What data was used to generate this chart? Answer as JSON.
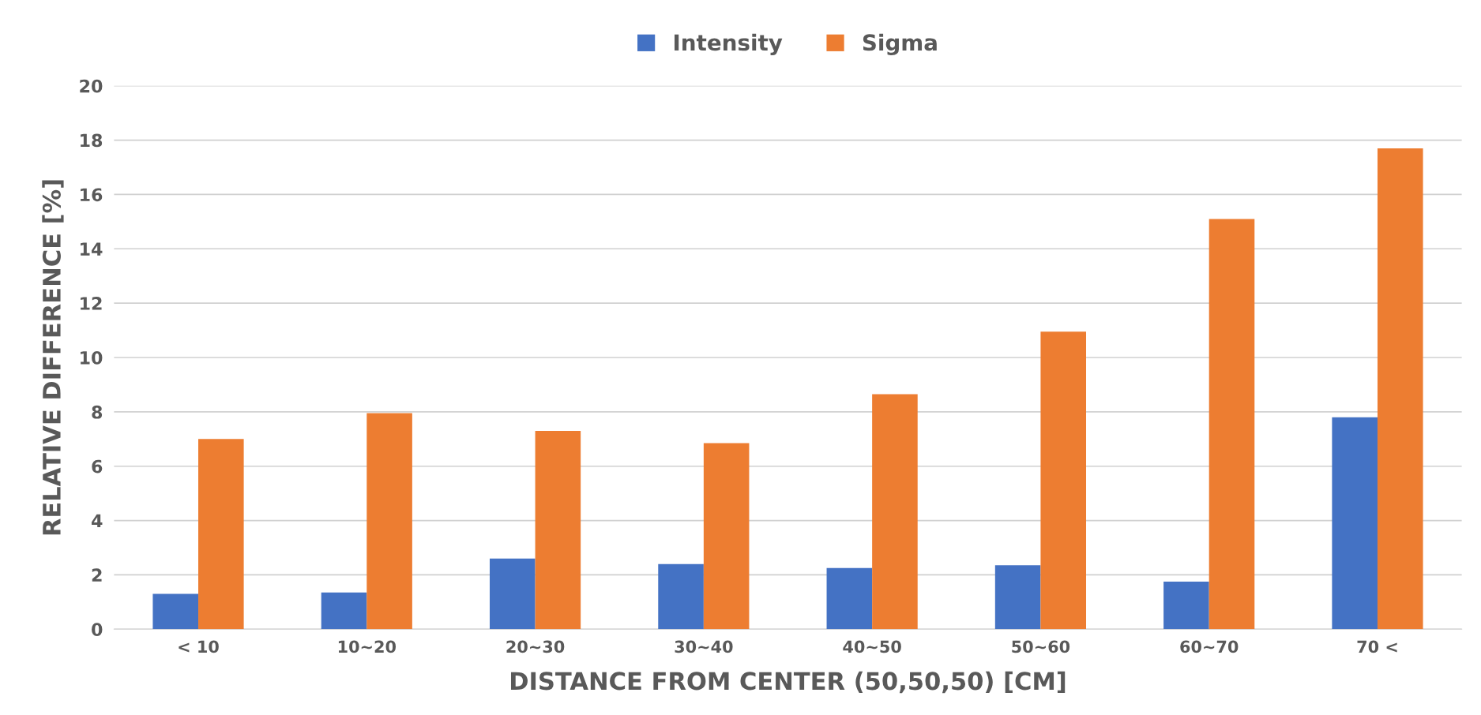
{
  "chart_data": {
    "type": "bar",
    "xlabel": "DISTANCE FROM CENTER (50,50,50) [CM]",
    "ylabel": "RELATIVE DIFFERENCE [%]",
    "categories": [
      "< 10",
      "10~20",
      "20~30",
      "30~40",
      "40~50",
      "50~60",
      "60~70",
      "70 <"
    ],
    "series": [
      {
        "name": "Intensity",
        "color": "#4472c4",
        "values": [
          1.3,
          1.35,
          2.6,
          2.4,
          2.25,
          2.35,
          1.75,
          7.8
        ]
      },
      {
        "name": "Sigma",
        "color": "#ed7d31",
        "values": [
          7.0,
          7.95,
          7.3,
          6.85,
          8.65,
          10.95,
          15.1,
          17.7
        ]
      }
    ],
    "ylim": [
      0,
      20
    ],
    "yticks": [
      0,
      2,
      4,
      6,
      8,
      10,
      12,
      14,
      16,
      18,
      20
    ],
    "grid": "y",
    "legend": "top"
  }
}
